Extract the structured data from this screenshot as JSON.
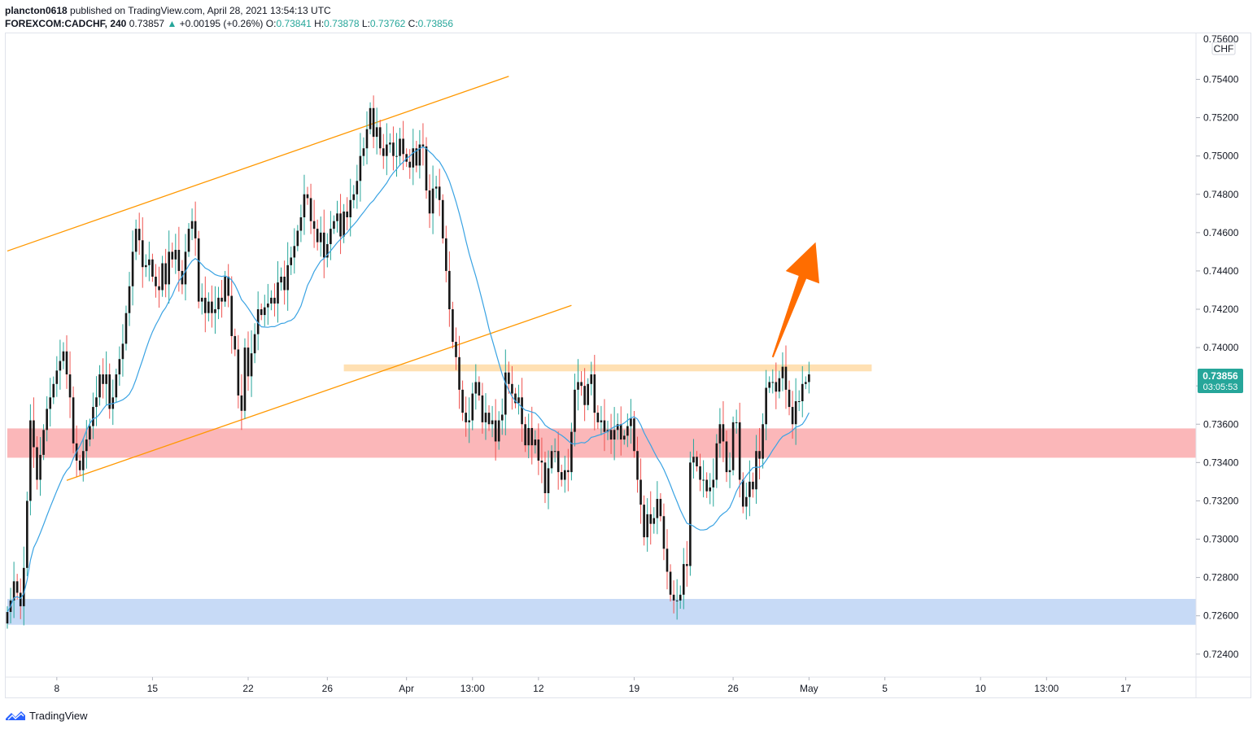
{
  "header": {
    "author": "plancton0618",
    "published_text": "published on TradingView.com, April 28, 2021 13:54:13 UTC",
    "symbol": "FOREXCOM:CADCHF, 240",
    "last": "0.73857",
    "change_arrow": "▲",
    "change": "+0.00195 (+0.26%)",
    "o_label": "O:",
    "o_value": "0.73841",
    "h_label": "H:",
    "h_value": "0.73878",
    "l_label": "L:",
    "l_value": "0.73762",
    "c_label": "C:",
    "c_value": "0.73856"
  },
  "price_axis": {
    "currency": "CHF",
    "last_price_tag": "0.73856",
    "countdown_tag": "03:05:53",
    "top_partial_label": "0.75600"
  },
  "footer": {
    "brand": "TradingView",
    "logo_icon": "tradingview-logo-icon"
  },
  "colors": {
    "bull": "#26a69a",
    "bear": "#ef5350",
    "candle_body": "#161616",
    "ma": "#3aa3e3",
    "trendline": "#ff9800",
    "arrow": "#ff6d00",
    "resistance_zone": "#ffcc80",
    "support_zone": "#f77c80",
    "demand_zone": "#90b6ee",
    "price_tag": "#26a69a"
  },
  "chart_data": {
    "type": "candlestick",
    "symbol": "FOREXCOM:CADCHF",
    "interval": "240",
    "ylim": [
      0.7228,
      0.7564
    ],
    "y_ticks": [
      "0.75400",
      "0.75200",
      "0.75000",
      "0.74800",
      "0.74600",
      "0.74400",
      "0.74200",
      "0.74000",
      "0.73800",
      "0.73600",
      "0.73400",
      "0.73200",
      "0.73000",
      "0.72800",
      "0.72600",
      "0.72400"
    ],
    "x_ticks": [
      "8",
      "15",
      "22",
      "26",
      "Apr",
      "13:00",
      "12",
      "19",
      "26",
      "May",
      "5",
      "10",
      "13:00",
      "17"
    ],
    "x_tick_index": [
      15,
      44,
      73,
      97,
      121,
      141,
      161,
      190,
      220,
      243,
      266,
      295,
      315,
      339
    ],
    "last_price": 0.73856,
    "closes": [
      0.7262,
      0.7268,
      0.7278,
      0.7272,
      0.7265,
      0.7285,
      0.732,
      0.7362,
      0.7348,
      0.7331,
      0.7344,
      0.7357,
      0.7368,
      0.7374,
      0.7381,
      0.7388,
      0.7393,
      0.7398,
      0.7386,
      0.7374,
      0.735,
      0.7341,
      0.7336,
      0.7346,
      0.7352,
      0.7359,
      0.7369,
      0.7374,
      0.7386,
      0.7381,
      0.7386,
      0.7368,
      0.7374,
      0.7386,
      0.7394,
      0.7402,
      0.7418,
      0.7432,
      0.745,
      0.7462,
      0.7456,
      0.7442,
      0.7443,
      0.7446,
      0.7437,
      0.7432,
      0.743,
      0.7444,
      0.7433,
      0.745,
      0.7446,
      0.7451,
      0.744,
      0.7433,
      0.745,
      0.7462,
      0.7466,
      0.7457,
      0.7424,
      0.7426,
      0.7418,
      0.7424,
      0.7418,
      0.742,
      0.7426,
      0.7424,
      0.7437,
      0.7427,
      0.7406,
      0.7399,
      0.7375,
      0.7367,
      0.74,
      0.7385,
      0.7397,
      0.7407,
      0.742,
      0.7417,
      0.7421,
      0.7423,
      0.7426,
      0.7423,
      0.7434,
      0.7437,
      0.743,
      0.7443,
      0.7447,
      0.7453,
      0.7461,
      0.7468,
      0.748,
      0.7478,
      0.7466,
      0.7462,
      0.7455,
      0.746,
      0.7447,
      0.7454,
      0.7462,
      0.7466,
      0.747,
      0.7458,
      0.7471,
      0.7468,
      0.7477,
      0.748,
      0.7487,
      0.75,
      0.7504,
      0.7514,
      0.7525,
      0.751,
      0.7515,
      0.7504,
      0.75,
      0.7506,
      0.7507,
      0.75,
      0.75,
      0.7509,
      0.7501,
      0.7497,
      0.7494,
      0.7504,
      0.7495,
      0.7506,
      0.7505,
      0.7482,
      0.747,
      0.7483,
      0.7484,
      0.7477,
      0.7457,
      0.744,
      0.742,
      0.7403,
      0.7395,
      0.7378,
      0.7366,
      0.7361,
      0.7362,
      0.7376,
      0.7382,
      0.7375,
      0.7361,
      0.7366,
      0.736,
      0.7362,
      0.7351,
      0.7362,
      0.7365,
      0.7387,
      0.7381,
      0.7376,
      0.7371,
      0.7374,
      0.736,
      0.7349,
      0.7358,
      0.7349,
      0.7352,
      0.7341,
      0.734,
      0.7324,
      0.7337,
      0.7346,
      0.7346,
      0.7335,
      0.7331,
      0.7336,
      0.7335,
      0.7356,
      0.7378,
      0.7382,
      0.738,
      0.737,
      0.7381,
      0.7386,
      0.7366,
      0.7361,
      0.7362,
      0.7356,
      0.7357,
      0.7352,
      0.7357,
      0.736,
      0.7352,
      0.7354,
      0.7359,
      0.7363,
      0.7346,
      0.7331,
      0.7318,
      0.7301,
      0.7313,
      0.7308,
      0.7311,
      0.7321,
      0.7312,
      0.7295,
      0.7283,
      0.7271,
      0.7268,
      0.7268,
      0.7271,
      0.7287,
      0.7286,
      0.734,
      0.7343,
      0.7338,
      0.7331,
      0.7331,
      0.7325,
      0.7327,
      0.7331,
      0.735,
      0.736,
      0.7351,
      0.7335,
      0.7336,
      0.7361,
      0.7361,
      0.7331,
      0.7317,
      0.7322,
      0.733,
      0.7326,
      0.7346,
      0.7342,
      0.736,
      0.7379,
      0.7382,
      0.7382,
      0.7377,
      0.7384,
      0.739,
      0.7378,
      0.7369,
      0.736,
      0.7372,
      0.7372,
      0.7381,
      0.7382,
      0.7386
    ],
    "ma_period": 20,
    "zones": [
      {
        "name": "resistance",
        "from": 0.73876,
        "to": 0.73912,
        "x_start": 102,
        "x_end": 262
      },
      {
        "name": "supply",
        "from": 0.73425,
        "to": 0.73578,
        "x_start": 0,
        "x_end": 999
      },
      {
        "name": "demand",
        "from": 0.72553,
        "to": 0.72688,
        "x_start": 0,
        "x_end": 999
      }
    ],
    "trendlines": [
      {
        "name": "channel-upper",
        "p1": [
          0,
          0.74504
        ],
        "p2": [
          152,
          0.75416
        ]
      },
      {
        "name": "channel-lower",
        "p1": [
          18,
          0.73307
        ],
        "p2": [
          171,
          0.7422
        ]
      }
    ],
    "arrow": {
      "from": [
        232,
        0.7395
      ],
      "to": [
        245,
        0.7455
      ],
      "direction": "up"
    }
  }
}
